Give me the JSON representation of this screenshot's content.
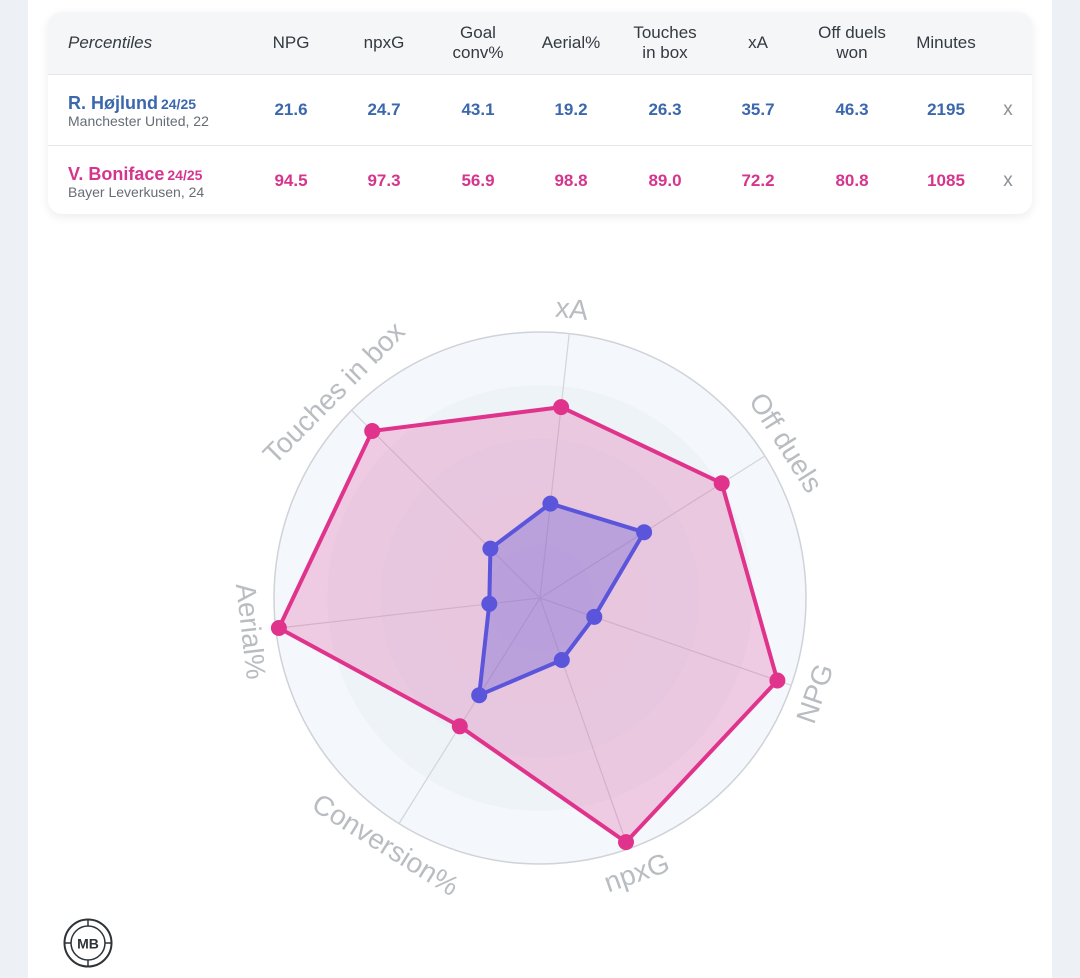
{
  "table": {
    "header_label": "Percentiles",
    "columns": [
      "NPG",
      "npxG",
      "Goal\nconv%",
      "Aerial%",
      "Touches\nin box",
      "xA",
      "Off duels\nwon",
      "Minutes"
    ],
    "remove_label": "x",
    "players": [
      {
        "name": "R. Højlund",
        "season": "24/25",
        "club": "Manchester United, 22",
        "values": [
          "21.6",
          "24.7",
          "43.1",
          "19.2",
          "26.3",
          "35.7",
          "46.3",
          "2195"
        ],
        "color": "#3b68ad"
      },
      {
        "name": "V. Boniface",
        "season": "24/25",
        "club": "Bayer Leverkusen, 24",
        "values": [
          "94.5",
          "97.3",
          "56.9",
          "98.8",
          "89.0",
          "72.2",
          "80.8",
          "1085"
        ],
        "color": "#d5358d"
      }
    ]
  },
  "chart_data": {
    "type": "radar",
    "range": [
      0,
      100
    ],
    "axes": [
      "xA",
      "Off duels",
      "NPG",
      "npxG",
      "Conversion%",
      "Aerial%",
      "Touches in box"
    ],
    "series": [
      {
        "values": [
          35.7,
          46.3,
          21.6,
          24.7,
          43.1,
          19.2,
          26.3
        ],
        "color": "#5a55db"
      },
      {
        "values": [
          72.2,
          80.8,
          94.5,
          97.3,
          56.9,
          98.8,
          89.0
        ],
        "color": "#e0348c"
      }
    ],
    "ring_colors": [
      "#f4f7fb",
      "#eef3f8",
      "#eaf1f6",
      "#e9f0f5",
      "#e8eff4"
    ]
  },
  "logo": {
    "text": "MB"
  }
}
